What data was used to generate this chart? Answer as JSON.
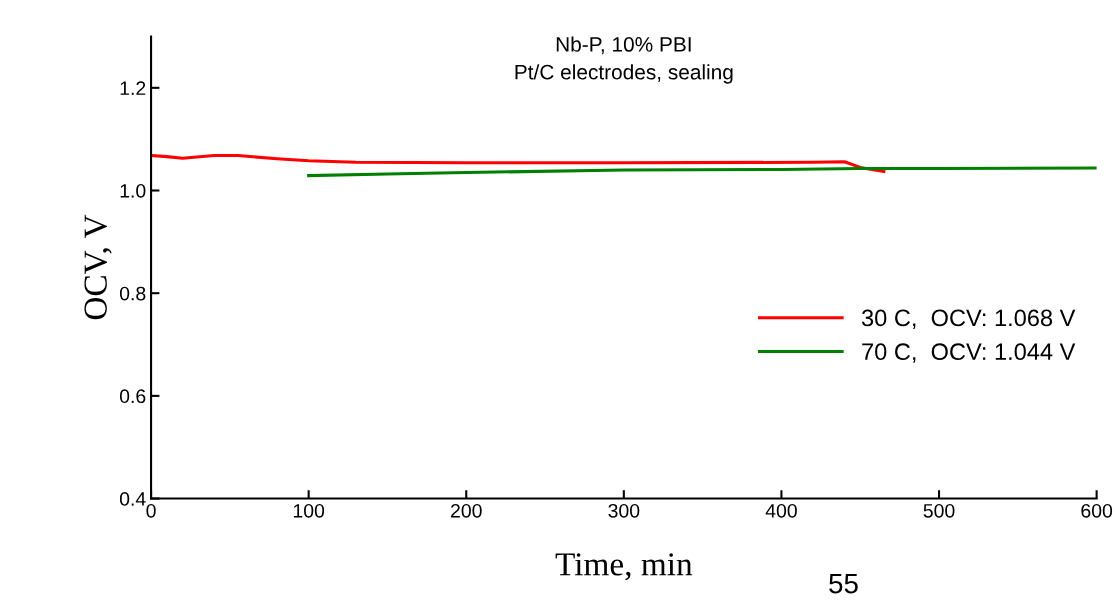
{
  "chart_data": {
    "type": "line",
    "title": "Nb-P, 10% PBI",
    "subtitle": "Pt/C electrodes, sealing",
    "xlabel": "Time, min",
    "ylabel": "OCV, V",
    "xlim": [
      0,
      600
    ],
    "xticks": [
      0,
      100,
      200,
      300,
      400,
      500,
      600
    ],
    "ylim": [
      0.4,
      1.3
    ],
    "yticks": [
      0.4,
      0.6,
      0.8,
      {
        "value": 1,
        "label": "1.0"
      },
      1.2
    ],
    "legend": "right",
    "grid": false,
    "annotations": [
      "55"
    ],
    "series": [
      {
        "name": "30 C,  OCV: 1.068 V",
        "color": "#ff0000",
        "x": [
          0,
          10,
          20,
          40,
          55,
          80,
          100,
          130,
          200,
          300,
          420,
          440,
          450,
          465
        ],
        "values": [
          1.068,
          1.066,
          1.063,
          1.068,
          1.068,
          1.062,
          1.058,
          1.055,
          1.054,
          1.054,
          1.055,
          1.056,
          1.045,
          1.037
        ]
      },
      {
        "name": "70 C,  OCV: 1.044 V",
        "color": "#008000",
        "x": [
          100,
          150,
          200,
          300,
          400,
          450,
          500,
          600
        ],
        "values": [
          1.029,
          1.032,
          1.035,
          1.04,
          1.041,
          1.043,
          1.043,
          1.044
        ]
      }
    ]
  }
}
